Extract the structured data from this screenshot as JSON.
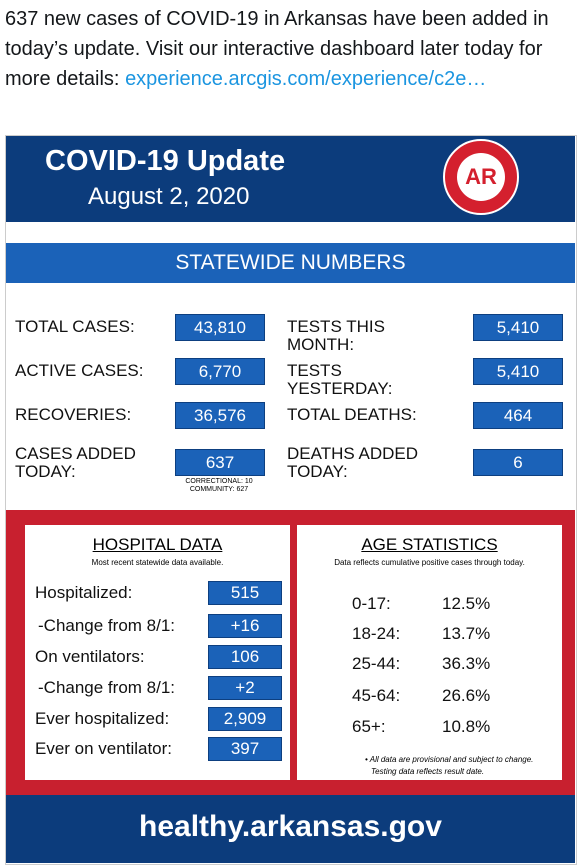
{
  "tweet": {
    "text": "637 new cases of COVID-19 in Arkansas have been added in today’s update. Visit our interactive dashboard later today for more details:",
    "link": "experience.arcgis.com/experience/c2e…"
  },
  "header": {
    "title": "COVID-19 Update",
    "date": "August 2, 2020",
    "logo": "AR"
  },
  "statewide": {
    "title": "STATEWIDE NUMBERS",
    "left": [
      {
        "label": "TOTAL CASES:",
        "value": "43,810"
      },
      {
        "label": "ACTIVE CASES:",
        "value": "6,770"
      },
      {
        "label": "RECOVERIES:",
        "value": "36,576"
      },
      {
        "label": "CASES ADDED TODAY:",
        "value": "637"
      }
    ],
    "right": [
      {
        "label": "TESTS THIS MONTH:",
        "value": "5,410"
      },
      {
        "label": "TESTS YESTERDAY:",
        "value": "5,410"
      },
      {
        "label": "TOTAL DEATHS:",
        "value": "464"
      },
      {
        "label": "DEATHS ADDED TODAY:",
        "value": "6"
      }
    ],
    "cases_note": [
      "CORRECTIONAL: 10",
      "COMMUNITY: 627"
    ]
  },
  "hospital": {
    "title": "HOSPITAL DATA",
    "subtitle": "Most recent statewide data available.",
    "rows": [
      {
        "label": "Hospitalized:",
        "value": "515"
      },
      {
        "label": "-Change from 8/1:",
        "value": "+16"
      },
      {
        "label": "On ventilators:",
        "value": "106"
      },
      {
        "label": "-Change from 8/1:",
        "value": "+2"
      },
      {
        "label": "Ever hospitalized:",
        "value": "2,909"
      },
      {
        "label": "Ever on ventilator:",
        "value": "397"
      }
    ]
  },
  "age": {
    "title": "AGE STATISTICS",
    "subtitle": "Data reflects cumulative positive cases through today.",
    "rows": [
      {
        "label": "0-17:",
        "value": "12.5%"
      },
      {
        "label": "18-24:",
        "value": "13.7%"
      },
      {
        "label": "25-44:",
        "value": "36.3%"
      },
      {
        "label": "45-64:",
        "value": "26.6%"
      },
      {
        "label": "65+:",
        "value": "10.8%"
      }
    ],
    "notes": [
      "• All data are provisional and subject to change.",
      "Testing data reflects result date."
    ]
  },
  "footer": {
    "url": "healthy.arkansas.gov"
  }
}
